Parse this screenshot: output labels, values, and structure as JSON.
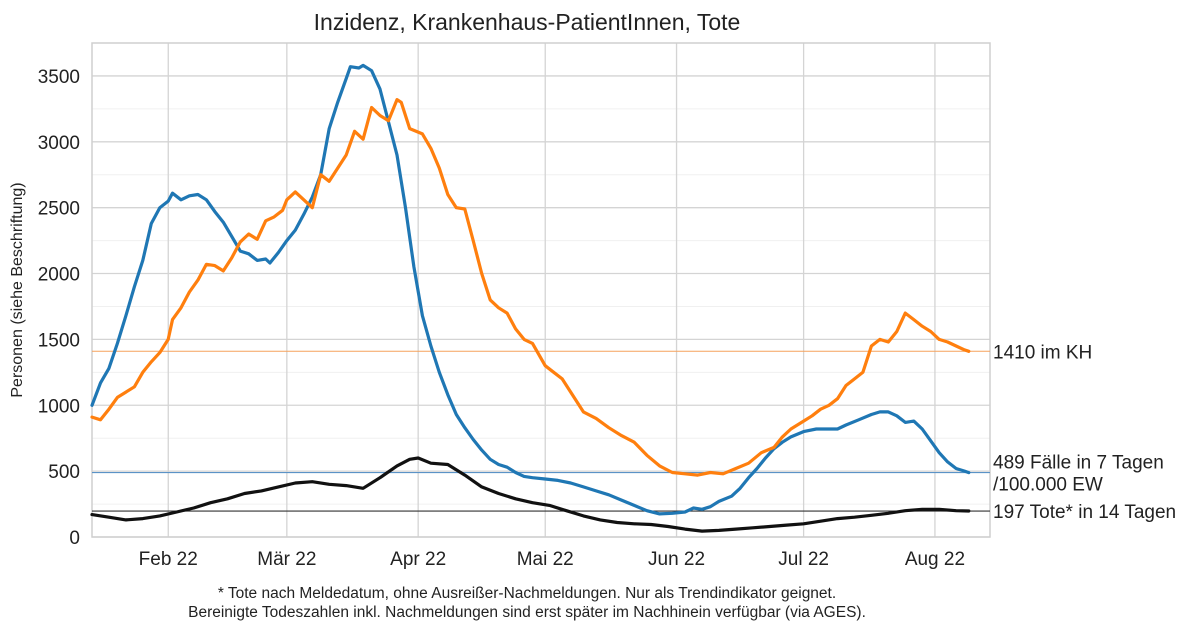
{
  "chart_data": {
    "type": "line",
    "title": "Inzidenz, Krankenhaus-PatientInnen, Tote",
    "xlabel": "",
    "ylabel": "Personen (siehe Beschriftung)",
    "ylim": [
      0,
      3750
    ],
    "xlim": [
      "2022-01-14",
      "2022-08-14"
    ],
    "yticks": [
      0,
      500,
      1000,
      1500,
      2000,
      2500,
      3000,
      3500
    ],
    "xticks": [
      {
        "date": "2022-02-01",
        "label": "Feb 22"
      },
      {
        "date": "2022-03-01",
        "label": "Mär 22"
      },
      {
        "date": "2022-04-01",
        "label": "Apr 22"
      },
      {
        "date": "2022-05-01",
        "label": "Mai 22"
      },
      {
        "date": "2022-06-01",
        "label": "Jun 22"
      },
      {
        "date": "2022-07-01",
        "label": "Jul 22"
      },
      {
        "date": "2022-08-01",
        "label": "Aug 22"
      }
    ],
    "grid": true,
    "series": [
      {
        "key": "incidence",
        "color": "#1f77b4",
        "points": [
          [
            "2022-01-14",
            1000
          ],
          [
            "2022-01-16",
            1170
          ],
          [
            "2022-01-18",
            1280
          ],
          [
            "2022-01-20",
            1470
          ],
          [
            "2022-01-22",
            1680
          ],
          [
            "2022-01-24",
            1900
          ],
          [
            "2022-01-26",
            2100
          ],
          [
            "2022-01-28",
            2380
          ],
          [
            "2022-01-30",
            2500
          ],
          [
            "2022-02-01",
            2550
          ],
          [
            "2022-02-02",
            2610
          ],
          [
            "2022-02-04",
            2560
          ],
          [
            "2022-02-06",
            2590
          ],
          [
            "2022-02-08",
            2600
          ],
          [
            "2022-02-10",
            2560
          ],
          [
            "2022-02-12",
            2470
          ],
          [
            "2022-02-14",
            2390
          ],
          [
            "2022-02-16",
            2280
          ],
          [
            "2022-02-18",
            2170
          ],
          [
            "2022-02-20",
            2150
          ],
          [
            "2022-02-22",
            2100
          ],
          [
            "2022-02-24",
            2110
          ],
          [
            "2022-02-25",
            2080
          ],
          [
            "2022-02-27",
            2160
          ],
          [
            "2022-03-01",
            2250
          ],
          [
            "2022-03-03",
            2330
          ],
          [
            "2022-03-05",
            2450
          ],
          [
            "2022-03-07",
            2580
          ],
          [
            "2022-03-09",
            2750
          ],
          [
            "2022-03-11",
            3100
          ],
          [
            "2022-03-13",
            3300
          ],
          [
            "2022-03-15",
            3480
          ],
          [
            "2022-03-16",
            3570
          ],
          [
            "2022-03-18",
            3560
          ],
          [
            "2022-03-19",
            3580
          ],
          [
            "2022-03-21",
            3540
          ],
          [
            "2022-03-23",
            3400
          ],
          [
            "2022-03-25",
            3150
          ],
          [
            "2022-03-27",
            2900
          ],
          [
            "2022-03-29",
            2500
          ],
          [
            "2022-03-31",
            2050
          ],
          [
            "2022-04-02",
            1680
          ],
          [
            "2022-04-04",
            1450
          ],
          [
            "2022-04-06",
            1250
          ],
          [
            "2022-04-08",
            1080
          ],
          [
            "2022-04-10",
            930
          ],
          [
            "2022-04-12",
            830
          ],
          [
            "2022-04-14",
            740
          ],
          [
            "2022-04-16",
            660
          ],
          [
            "2022-04-18",
            590
          ],
          [
            "2022-04-20",
            550
          ],
          [
            "2022-04-22",
            530
          ],
          [
            "2022-04-24",
            490
          ],
          [
            "2022-04-26",
            460
          ],
          [
            "2022-04-28",
            450
          ],
          [
            "2022-05-01",
            440
          ],
          [
            "2022-05-04",
            430
          ],
          [
            "2022-05-07",
            410
          ],
          [
            "2022-05-10",
            380
          ],
          [
            "2022-05-13",
            350
          ],
          [
            "2022-05-16",
            320
          ],
          [
            "2022-05-19",
            280
          ],
          [
            "2022-05-22",
            240
          ],
          [
            "2022-05-25",
            200
          ],
          [
            "2022-05-28",
            175
          ],
          [
            "2022-05-31",
            180
          ],
          [
            "2022-06-03",
            190
          ],
          [
            "2022-06-05",
            220
          ],
          [
            "2022-06-07",
            210
          ],
          [
            "2022-06-09",
            230
          ],
          [
            "2022-06-11",
            270
          ],
          [
            "2022-06-14",
            310
          ],
          [
            "2022-06-16",
            370
          ],
          [
            "2022-06-18",
            450
          ],
          [
            "2022-06-20",
            520
          ],
          [
            "2022-06-22",
            600
          ],
          [
            "2022-06-24",
            670
          ],
          [
            "2022-06-26",
            720
          ],
          [
            "2022-06-28",
            760
          ],
          [
            "2022-07-01",
            800
          ],
          [
            "2022-07-04",
            820
          ],
          [
            "2022-07-07",
            820
          ],
          [
            "2022-07-09",
            820
          ],
          [
            "2022-07-11",
            850
          ],
          [
            "2022-07-14",
            890
          ],
          [
            "2022-07-17",
            930
          ],
          [
            "2022-07-19",
            950
          ],
          [
            "2022-07-21",
            950
          ],
          [
            "2022-07-23",
            920
          ],
          [
            "2022-07-25",
            870
          ],
          [
            "2022-07-27",
            880
          ],
          [
            "2022-07-29",
            820
          ],
          [
            "2022-07-31",
            730
          ],
          [
            "2022-08-02",
            640
          ],
          [
            "2022-08-04",
            570
          ],
          [
            "2022-08-06",
            520
          ],
          [
            "2022-08-08",
            500
          ],
          [
            "2022-08-09",
            489
          ]
        ]
      },
      {
        "key": "hospital",
        "color": "#ff7f0e",
        "points": [
          [
            "2022-01-14",
            910
          ],
          [
            "2022-01-16",
            890
          ],
          [
            "2022-01-18",
            970
          ],
          [
            "2022-01-20",
            1060
          ],
          [
            "2022-01-22",
            1100
          ],
          [
            "2022-01-24",
            1140
          ],
          [
            "2022-01-26",
            1250
          ],
          [
            "2022-01-28",
            1330
          ],
          [
            "2022-01-30",
            1400
          ],
          [
            "2022-02-01",
            1500
          ],
          [
            "2022-02-02",
            1650
          ],
          [
            "2022-02-04",
            1740
          ],
          [
            "2022-02-06",
            1860
          ],
          [
            "2022-02-08",
            1950
          ],
          [
            "2022-02-10",
            2070
          ],
          [
            "2022-02-12",
            2060
          ],
          [
            "2022-02-14",
            2020
          ],
          [
            "2022-02-16",
            2120
          ],
          [
            "2022-02-18",
            2240
          ],
          [
            "2022-02-20",
            2300
          ],
          [
            "2022-02-22",
            2260
          ],
          [
            "2022-02-24",
            2400
          ],
          [
            "2022-02-26",
            2430
          ],
          [
            "2022-02-28",
            2480
          ],
          [
            "2022-03-01",
            2560
          ],
          [
            "2022-03-03",
            2620
          ],
          [
            "2022-03-05",
            2560
          ],
          [
            "2022-03-07",
            2500
          ],
          [
            "2022-03-09",
            2750
          ],
          [
            "2022-03-11",
            2700
          ],
          [
            "2022-03-13",
            2800
          ],
          [
            "2022-03-15",
            2900
          ],
          [
            "2022-03-17",
            3080
          ],
          [
            "2022-03-19",
            3020
          ],
          [
            "2022-03-21",
            3260
          ],
          [
            "2022-03-23",
            3200
          ],
          [
            "2022-03-25",
            3160
          ],
          [
            "2022-03-27",
            3320
          ],
          [
            "2022-03-28",
            3300
          ],
          [
            "2022-03-30",
            3100
          ],
          [
            "2022-04-02",
            3060
          ],
          [
            "2022-04-04",
            2950
          ],
          [
            "2022-04-06",
            2800
          ],
          [
            "2022-04-08",
            2600
          ],
          [
            "2022-04-10",
            2500
          ],
          [
            "2022-04-12",
            2490
          ],
          [
            "2022-04-14",
            2250
          ],
          [
            "2022-04-16",
            2000
          ],
          [
            "2022-04-18",
            1800
          ],
          [
            "2022-04-20",
            1740
          ],
          [
            "2022-04-22",
            1700
          ],
          [
            "2022-04-24",
            1580
          ],
          [
            "2022-04-26",
            1500
          ],
          [
            "2022-04-28",
            1470
          ],
          [
            "2022-05-01",
            1300
          ],
          [
            "2022-05-03",
            1250
          ],
          [
            "2022-05-05",
            1200
          ],
          [
            "2022-05-07",
            1100
          ],
          [
            "2022-05-10",
            950
          ],
          [
            "2022-05-13",
            900
          ],
          [
            "2022-05-16",
            830
          ],
          [
            "2022-05-19",
            770
          ],
          [
            "2022-05-22",
            720
          ],
          [
            "2022-05-25",
            620
          ],
          [
            "2022-05-28",
            540
          ],
          [
            "2022-05-31",
            490
          ],
          [
            "2022-06-03",
            480
          ],
          [
            "2022-06-06",
            470
          ],
          [
            "2022-06-09",
            490
          ],
          [
            "2022-06-12",
            480
          ],
          [
            "2022-06-15",
            520
          ],
          [
            "2022-06-18",
            560
          ],
          [
            "2022-06-21",
            640
          ],
          [
            "2022-06-24",
            680
          ],
          [
            "2022-06-26",
            760
          ],
          [
            "2022-06-28",
            820
          ],
          [
            "2022-07-01",
            880
          ],
          [
            "2022-07-03",
            920
          ],
          [
            "2022-07-05",
            970
          ],
          [
            "2022-07-07",
            1000
          ],
          [
            "2022-07-09",
            1050
          ],
          [
            "2022-07-11",
            1150
          ],
          [
            "2022-07-13",
            1200
          ],
          [
            "2022-07-15",
            1250
          ],
          [
            "2022-07-17",
            1450
          ],
          [
            "2022-07-19",
            1500
          ],
          [
            "2022-07-21",
            1480
          ],
          [
            "2022-07-23",
            1560
          ],
          [
            "2022-07-25",
            1700
          ],
          [
            "2022-07-27",
            1650
          ],
          [
            "2022-07-29",
            1600
          ],
          [
            "2022-07-31",
            1560
          ],
          [
            "2022-08-02",
            1500
          ],
          [
            "2022-08-04",
            1480
          ],
          [
            "2022-08-06",
            1450
          ],
          [
            "2022-08-08",
            1420
          ],
          [
            "2022-08-09",
            1410
          ]
        ]
      },
      {
        "key": "deaths",
        "color": "#111111",
        "points": [
          [
            "2022-01-14",
            170
          ],
          [
            "2022-01-18",
            150
          ],
          [
            "2022-01-22",
            130
          ],
          [
            "2022-01-26",
            140
          ],
          [
            "2022-01-30",
            160
          ],
          [
            "2022-02-03",
            190
          ],
          [
            "2022-02-07",
            220
          ],
          [
            "2022-02-11",
            260
          ],
          [
            "2022-02-15",
            290
          ],
          [
            "2022-02-19",
            330
          ],
          [
            "2022-02-23",
            350
          ],
          [
            "2022-02-27",
            380
          ],
          [
            "2022-03-03",
            410
          ],
          [
            "2022-03-07",
            420
          ],
          [
            "2022-03-11",
            400
          ],
          [
            "2022-03-15",
            390
          ],
          [
            "2022-03-19",
            370
          ],
          [
            "2022-03-23",
            450
          ],
          [
            "2022-03-27",
            540
          ],
          [
            "2022-03-30",
            590
          ],
          [
            "2022-04-01",
            600
          ],
          [
            "2022-04-04",
            560
          ],
          [
            "2022-04-08",
            550
          ],
          [
            "2022-04-12",
            470
          ],
          [
            "2022-04-16",
            380
          ],
          [
            "2022-04-20",
            330
          ],
          [
            "2022-04-24",
            290
          ],
          [
            "2022-04-28",
            260
          ],
          [
            "2022-05-02",
            240
          ],
          [
            "2022-05-06",
            200
          ],
          [
            "2022-05-10",
            160
          ],
          [
            "2022-05-14",
            130
          ],
          [
            "2022-05-18",
            110
          ],
          [
            "2022-05-22",
            100
          ],
          [
            "2022-05-26",
            95
          ],
          [
            "2022-05-30",
            80
          ],
          [
            "2022-06-03",
            60
          ],
          [
            "2022-06-07",
            45
          ],
          [
            "2022-06-11",
            50
          ],
          [
            "2022-06-15",
            60
          ],
          [
            "2022-06-19",
            70
          ],
          [
            "2022-06-23",
            80
          ],
          [
            "2022-06-27",
            90
          ],
          [
            "2022-07-01",
            100
          ],
          [
            "2022-07-05",
            120
          ],
          [
            "2022-07-09",
            140
          ],
          [
            "2022-07-13",
            150
          ],
          [
            "2022-07-17",
            165
          ],
          [
            "2022-07-21",
            180
          ],
          [
            "2022-07-25",
            200
          ],
          [
            "2022-07-29",
            210
          ],
          [
            "2022-08-02",
            210
          ],
          [
            "2022-08-06",
            200
          ],
          [
            "2022-08-09",
            197
          ]
        ]
      }
    ],
    "reference_lines": [
      {
        "value": 1410,
        "color": "#f5a25d"
      },
      {
        "value": 489,
        "color": "#5b93c7"
      },
      {
        "value": 197,
        "color": "#333333"
      }
    ],
    "annotations": [
      {
        "lines": [
          "1410 im KH"
        ],
        "value": 1410
      },
      {
        "lines": [
          "489 Fälle in 7 Tagen",
          "/100.000 EW"
        ],
        "value": 489
      },
      {
        "lines": [
          "197 Tote* in 14 Tagen"
        ],
        "value": 197
      }
    ],
    "footnote": [
      "* Tote nach Meldedatum, ohne Ausreißer-Nachmeldungen. Nur als Trendindikator geignet.",
      "Bereinigte Todeszahlen inkl. Nachmeldungen sind erst später im Nachhinein verfügbar (via AGES)."
    ]
  }
}
